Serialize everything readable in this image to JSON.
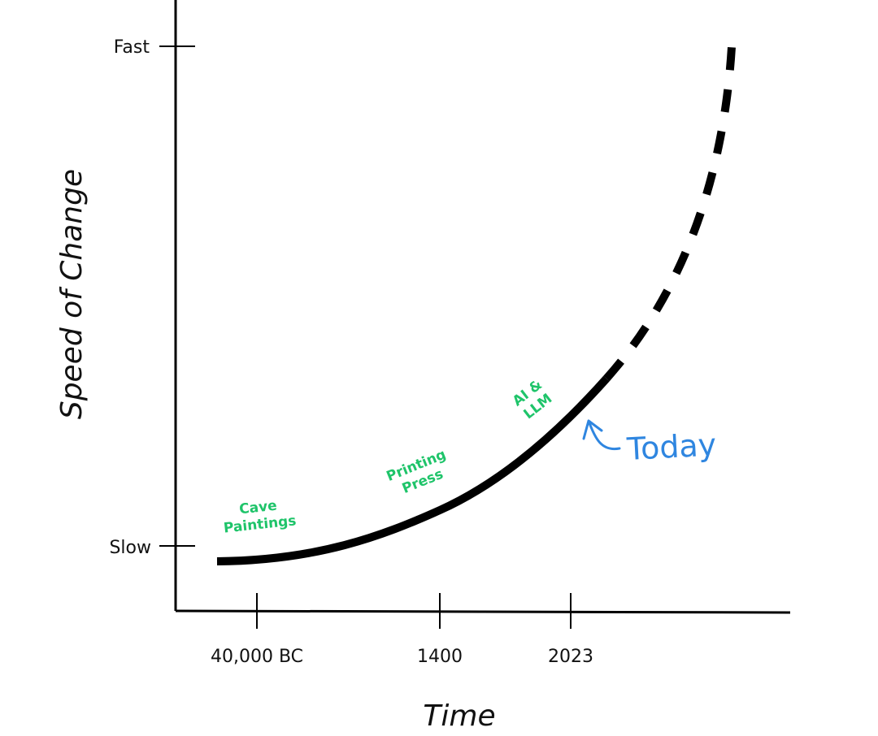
{
  "chart_data": {
    "type": "line",
    "xlabel": "Time",
    "ylabel": "Speed of Change",
    "x_ticks": [
      "40,000 BC",
      "1400",
      "2023"
    ],
    "y_ticks": [
      "Slow",
      "Fast"
    ],
    "series": [
      {
        "style": "solid",
        "x": [
          -40000,
          1400,
          2023
        ],
        "y": [
          0.0,
          0.1,
          0.22
        ]
      },
      {
        "style": "dashed",
        "x": [
          2023,
          2100
        ],
        "y": [
          0.22,
          1.05
        ]
      }
    ],
    "annotations": [
      {
        "text_lines": [
          "Cave",
          "Paintings"
        ],
        "color": "#1fc46a"
      },
      {
        "text_lines": [
          "Printing",
          "Press"
        ],
        "color": "#1fc46a"
      },
      {
        "text_lines": [
          "AI &",
          "LLM"
        ],
        "color": "#1fc46a"
      },
      {
        "text_lines": [
          "Today"
        ],
        "color": "#2f86e0",
        "arrow": true
      }
    ],
    "grid": false,
    "legend": "none"
  }
}
